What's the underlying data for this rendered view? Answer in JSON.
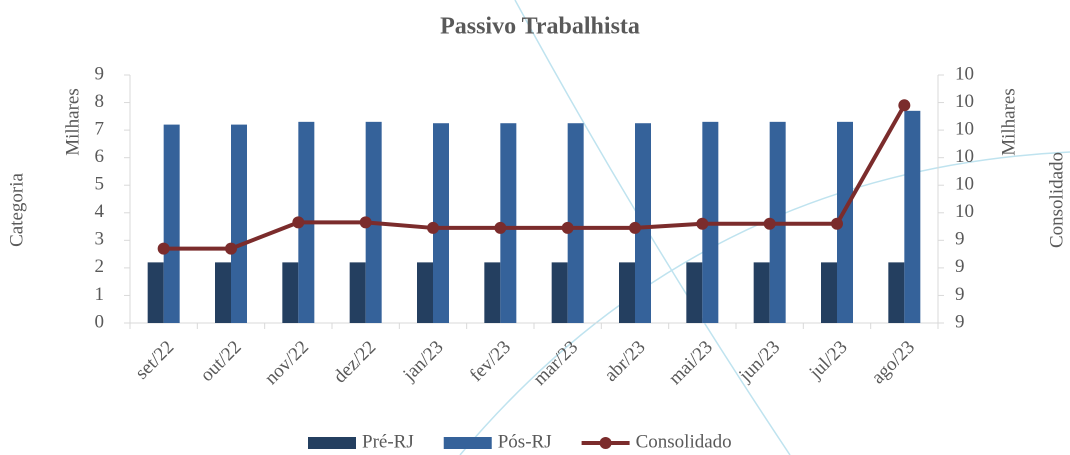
{
  "chart_data": {
    "type": "combo",
    "title": "Passivo Trabalhista",
    "y_label": "Milhares",
    "y_title": "Categoria",
    "y2_label": "Milhares",
    "y2_title": "Consolidado",
    "categories": [
      "set/22",
      "out/22",
      "nov/22",
      "dez/22",
      "jan/23",
      "fev/23",
      "mar/23",
      "abr/23",
      "mai/23",
      "jun/23",
      "jul/23",
      "ago/23"
    ],
    "series": [
      {
        "name": "Pré-RJ",
        "type": "bar",
        "color": "#243f60",
        "values": [
          2.2,
          2.2,
          2.2,
          2.2,
          2.2,
          2.2,
          2.2,
          2.2,
          2.2,
          2.2,
          2.2,
          2.2
        ]
      },
      {
        "name": "Pós-RJ",
        "type": "bar",
        "color": "#35629a",
        "values": [
          7.2,
          7.2,
          7.3,
          7.3,
          7.25,
          7.25,
          7.25,
          7.25,
          7.3,
          7.3,
          7.3,
          7.7
        ]
      },
      {
        "name": "Consolidado",
        "type": "line",
        "axis": "y2",
        "color": "#7b2c2c",
        "values": [
          9.4,
          9.4,
          9.495,
          9.495,
          9.475,
          9.475,
          9.475,
          9.475,
          9.49,
          9.49,
          9.49,
          9.92
        ]
      }
    ],
    "ylim": [
      0,
      9
    ],
    "yticks": [
      0,
      1,
      2,
      3,
      4,
      5,
      6,
      7,
      8,
      9
    ],
    "y2lim": [
      9.13,
      10.03
    ],
    "y2ticks": [
      {
        "value": 9.13,
        "label": "9"
      },
      {
        "value": 9.23,
        "label": "9"
      },
      {
        "value": 9.33,
        "label": "9"
      },
      {
        "value": 9.43,
        "label": "9"
      },
      {
        "value": 9.53,
        "label": "10"
      },
      {
        "value": 9.63,
        "label": "10"
      },
      {
        "value": 9.73,
        "label": "10"
      },
      {
        "value": 9.83,
        "label": "10"
      },
      {
        "value": 9.93,
        "label": "10"
      },
      {
        "value": 10.03,
        "label": "10"
      }
    ],
    "grid": false
  }
}
